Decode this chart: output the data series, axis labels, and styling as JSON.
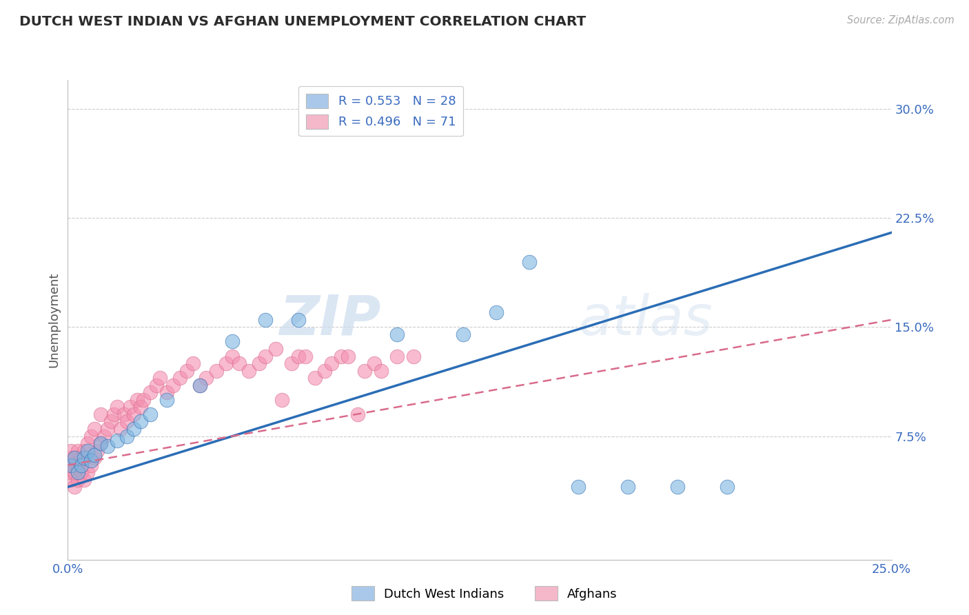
{
  "title": "DUTCH WEST INDIAN VS AFGHAN UNEMPLOYMENT CORRELATION CHART",
  "source": "Source: ZipAtlas.com",
  "ylabel_label": "Unemployment",
  "ytick_labels": [
    "7.5%",
    "15.0%",
    "22.5%",
    "30.0%"
  ],
  "ytick_values": [
    0.075,
    0.15,
    0.225,
    0.3
  ],
  "xlim": [
    0.0,
    0.25
  ],
  "ylim": [
    -0.01,
    0.32
  ],
  "legend_entries": [
    {
      "label_r": "R = 0.553",
      "label_n": "N = 28",
      "color": "#aac9ea"
    },
    {
      "label_r": "R = 0.496",
      "label_n": "N = 71",
      "color": "#f5b8cb"
    }
  ],
  "bottom_legend": [
    {
      "label": "Dutch West Indians",
      "color": "#aac9ea"
    },
    {
      "label": "Afghans",
      "color": "#f5b8cb"
    }
  ],
  "blue_scatter_color": "#7eb5e0",
  "pink_scatter_color": "#f48fb1",
  "blue_line_color": "#2b6db5",
  "pink_line_color": "#d96b8a",
  "watermark_zip": "ZIP",
  "watermark_atlas": "atlas",
  "title_color": "#2c2c2c",
  "axis_label_color": "#555555",
  "tick_label_color": "#3a6bbf",
  "background_color": "#ffffff",
  "grid_color": "#cccccc",
  "dwi_x": [
    0.001,
    0.002,
    0.003,
    0.004,
    0.005,
    0.006,
    0.007,
    0.008,
    0.01,
    0.012,
    0.015,
    0.018,
    0.02,
    0.022,
    0.025,
    0.03,
    0.04,
    0.05,
    0.06,
    0.07,
    0.1,
    0.12,
    0.13,
    0.14,
    0.155,
    0.17,
    0.185,
    0.2
  ],
  "dwi_y": [
    0.055,
    0.06,
    0.05,
    0.055,
    0.06,
    0.065,
    0.058,
    0.062,
    0.07,
    0.068,
    0.072,
    0.075,
    0.08,
    0.085,
    0.09,
    0.1,
    0.11,
    0.14,
    0.155,
    0.155,
    0.145,
    0.145,
    0.16,
    0.195,
    0.04,
    0.04,
    0.04,
    0.04
  ],
  "afghan_x": [
    0.001,
    0.001,
    0.001,
    0.001,
    0.001,
    0.002,
    0.002,
    0.002,
    0.002,
    0.003,
    0.003,
    0.003,
    0.004,
    0.004,
    0.005,
    0.005,
    0.006,
    0.006,
    0.007,
    0.007,
    0.008,
    0.008,
    0.009,
    0.01,
    0.01,
    0.011,
    0.012,
    0.013,
    0.014,
    0.015,
    0.016,
    0.017,
    0.018,
    0.019,
    0.02,
    0.021,
    0.022,
    0.023,
    0.025,
    0.027,
    0.028,
    0.03,
    0.032,
    0.034,
    0.036,
    0.038,
    0.04,
    0.042,
    0.045,
    0.048,
    0.05,
    0.052,
    0.055,
    0.058,
    0.06,
    0.063,
    0.065,
    0.068,
    0.07,
    0.072,
    0.075,
    0.078,
    0.08,
    0.083,
    0.085,
    0.088,
    0.09,
    0.093,
    0.095,
    0.1,
    0.105
  ],
  "afghan_y": [
    0.045,
    0.05,
    0.055,
    0.06,
    0.065,
    0.04,
    0.05,
    0.055,
    0.06,
    0.045,
    0.055,
    0.065,
    0.05,
    0.06,
    0.045,
    0.065,
    0.05,
    0.07,
    0.055,
    0.075,
    0.06,
    0.08,
    0.065,
    0.07,
    0.09,
    0.075,
    0.08,
    0.085,
    0.09,
    0.095,
    0.08,
    0.09,
    0.085,
    0.095,
    0.09,
    0.1,
    0.095,
    0.1,
    0.105,
    0.11,
    0.115,
    0.105,
    0.11,
    0.115,
    0.12,
    0.125,
    0.11,
    0.115,
    0.12,
    0.125,
    0.13,
    0.125,
    0.12,
    0.125,
    0.13,
    0.135,
    0.1,
    0.125,
    0.13,
    0.13,
    0.115,
    0.12,
    0.125,
    0.13,
    0.13,
    0.09,
    0.12,
    0.125,
    0.12,
    0.13,
    0.13
  ],
  "blue_line_x0": 0.0,
  "blue_line_y0": 0.04,
  "blue_line_x1": 0.25,
  "blue_line_y1": 0.215,
  "pink_line_x0": 0.0,
  "pink_line_y0": 0.055,
  "pink_line_x1": 0.25,
  "pink_line_y1": 0.155
}
